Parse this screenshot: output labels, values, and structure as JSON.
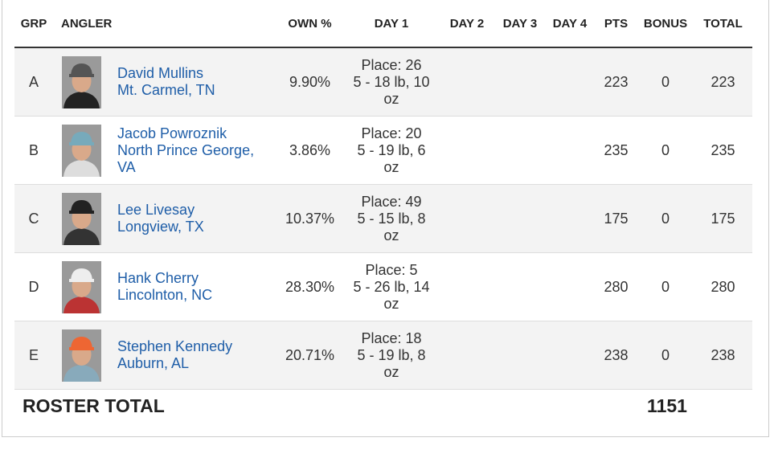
{
  "header": {
    "columns": [
      "GRP",
      "ANGLER",
      "OWN %",
      "DAY 1",
      "DAY 2",
      "DAY 3",
      "DAY 4",
      "PTS",
      "BONUS",
      "TOTAL"
    ]
  },
  "rows": [
    {
      "grp": "A",
      "name": "David Mullins",
      "location": "Mt. Carmel, TN",
      "own": "9.90%",
      "place": "Place: 26",
      "weight": "5 - 18 lb, 10 oz",
      "pts": 223,
      "bonus": 0,
      "total": 223
    },
    {
      "grp": "B",
      "name": "Jacob Powroznik",
      "location": "North Prince George, VA",
      "own": "3.86%",
      "place": "Place: 20",
      "weight": "5 - 19 lb, 6 oz",
      "pts": 235,
      "bonus": 0,
      "total": 235
    },
    {
      "grp": "C",
      "name": "Lee Livesay",
      "location": "Longview, TX",
      "own": "10.37%",
      "place": "Place: 49",
      "weight": "5 - 15 lb, 8 oz",
      "pts": 175,
      "bonus": 0,
      "total": 175
    },
    {
      "grp": "D",
      "name": "Hank Cherry",
      "location": "Lincolnton, NC",
      "own": "28.30%",
      "place": "Place: 5",
      "weight": "5 - 26 lb, 14 oz",
      "pts": 280,
      "bonus": 0,
      "total": 280
    },
    {
      "grp": "E",
      "name": "Stephen Kennedy",
      "location": "Auburn, AL",
      "own": "20.71%",
      "place": "Place: 18",
      "weight": "5 - 19 lb, 8 oz",
      "pts": 238,
      "bonus": 0,
      "total": 238
    }
  ],
  "footer": {
    "label": "ROSTER TOTAL",
    "total": 1151
  }
}
